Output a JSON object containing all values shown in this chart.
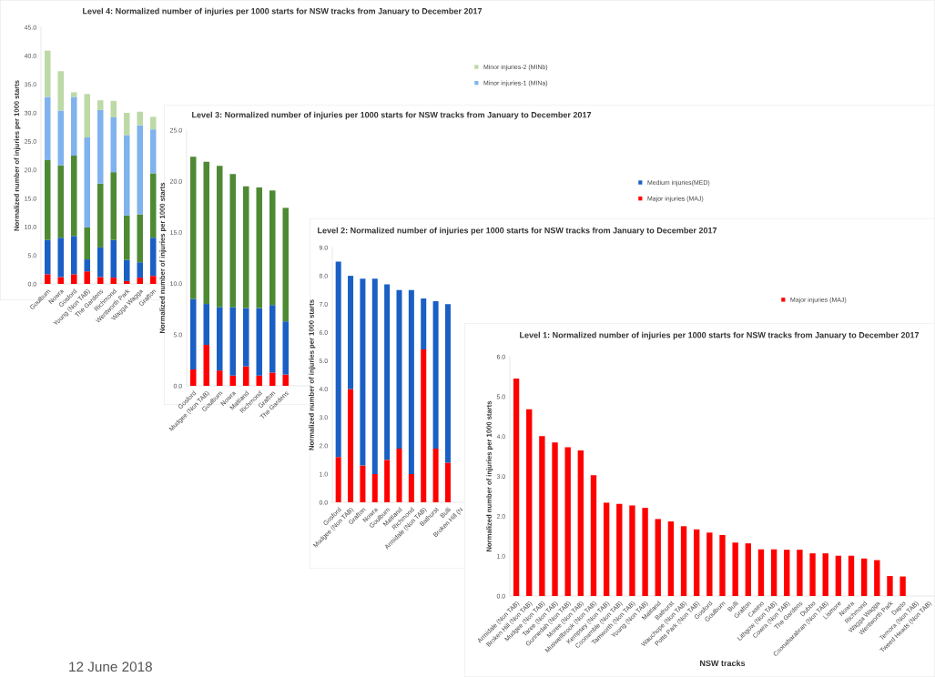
{
  "chart_data": [
    {
      "type": "bar",
      "title": "Level 4: Normalized number of injuries per 1000 starts for NSW tracks from January to December 2017",
      "ylabel": "Normalized number of injuries per 1000 starts",
      "stacked": true,
      "legend": "right",
      "categories": [
        "Goulburn",
        "Nowra",
        "Gosford",
        "Young (Non TAB)",
        "The Gardens",
        "Richmond",
        "Wentworth Park",
        "Wagga Wagga",
        "Grafton",
        null
      ],
      "series": [
        {
          "color": "#ff0000",
          "values": [
            1.7,
            1.2,
            1.7,
            2.2,
            1.2,
            1.1,
            0.5,
            1.1,
            1.4,
            null
          ]
        },
        {
          "color": "#1a5fc4",
          "values": [
            6.0,
            6.9,
            6.7,
            2.1,
            5.2,
            6.6,
            3.7,
            2.7,
            6.7,
            null
          ]
        },
        {
          "color": "#4e8a34",
          "values": [
            14.0,
            12.7,
            14.1,
            5.6,
            11.2,
            11.9,
            7.8,
            8.4,
            11.3,
            null
          ]
        },
        {
          "name": "Minor injuries-1 (MINa)",
          "color": "#80b3ee",
          "values": [
            11.1,
            9.6,
            10.3,
            15.8,
            12.9,
            9.6,
            14.1,
            15.6,
            7.7,
            null
          ]
        },
        {
          "name": "Minor injuries-2 (MINb)",
          "color": "#bcd9a6",
          "values": [
            8.1,
            6.9,
            0.8,
            7.6,
            1.7,
            2.9,
            3.9,
            2.4,
            2.2,
            null
          ]
        }
      ],
      "ylim": [
        0,
        45
      ],
      "yticks": [
        {
          "value": 0,
          "label": "0.0"
        },
        {
          "value": 5,
          "label": "5.0"
        },
        {
          "value": 10,
          "label": "10.0"
        },
        {
          "value": 15,
          "label": "15.0"
        },
        {
          "value": 20,
          "label": "20.0"
        },
        {
          "value": 25,
          "label": "25.0"
        },
        {
          "value": 30,
          "label": "30.0"
        },
        {
          "value": 35,
          "label": "35.0"
        },
        {
          "value": 40,
          "label": "40.0"
        },
        {
          "value": 45,
          "label": "45.0"
        }
      ],
      "annotations": [
        "12 June 2018"
      ]
    },
    {
      "type": "bar",
      "title": "Level 3: Normalized number of injuries per 1000 starts for NSW tracks from January to December 2017",
      "ylabel": "Normalized number of injuries per 1000 starts",
      "stacked": true,
      "legend": "right",
      "categories": [
        "Gosford",
        "Mudgee (Non TAB)",
        "Goulburn",
        "Nowra",
        "Maitland",
        "Richmond",
        "Grafton",
        "The Gardens",
        null,
        null
      ],
      "series": [
        {
          "name": "Major injuries (MAJ)",
          "color": "#ff0000",
          "values": [
            1.6,
            4.0,
            1.5,
            1.0,
            1.9,
            1.0,
            1.3,
            1.1,
            null,
            null
          ]
        },
        {
          "name": "Medium injuries(MED)",
          "color": "#1a5fc4",
          "values": [
            6.9,
            4.0,
            6.2,
            6.7,
            5.7,
            6.6,
            6.6,
            5.2,
            null,
            null
          ]
        },
        {
          "color": "#4e8a34",
          "values": [
            13.9,
            13.9,
            13.8,
            13.0,
            11.9,
            11.8,
            11.2,
            11.1,
            null,
            null
          ]
        }
      ],
      "ylim": [
        0,
        25
      ],
      "yticks": [
        {
          "value": 0,
          "label": "0.0"
        },
        {
          "value": 5,
          "label": "5.0"
        },
        {
          "value": 10,
          "label": "10.0"
        },
        {
          "value": 15,
          "label": "15.0"
        },
        {
          "value": 20,
          "label": "20.0"
        },
        {
          "value": 25,
          "label": "25.0"
        }
      ]
    },
    {
      "type": "bar",
      "title": "Level 2: Normalized number of injuries per 1000 starts for NSW tracks from January to December 2017",
      "ylabel": "Normalized number of injuries per 1000 starts",
      "stacked": true,
      "legend": "right",
      "categories": [
        "Gosford",
        "Mudgee (Non TAB)",
        "Grafton",
        "Nowra",
        "Goulburn",
        "Maitland",
        "Richmond",
        "Armidale (Non TAB)",
        "Bathurst",
        "Bulli",
        "Broken Hill (N"
      ],
      "series": [
        {
          "name": "Major injuries (MAJ)",
          "color": "#ff0000",
          "values": [
            1.6,
            4.0,
            1.3,
            1.0,
            1.5,
            1.9,
            1.0,
            5.4,
            1.9,
            1.4,
            null
          ]
        },
        {
          "color": "#1a5fc4",
          "values": [
            6.9,
            4.0,
            6.6,
            6.9,
            6.2,
            5.6,
            6.5,
            1.8,
            5.2,
            5.6,
            null
          ]
        }
      ],
      "ylim": [
        0,
        9
      ],
      "yticks": [
        {
          "value": 0,
          "label": "0.0"
        },
        {
          "value": 1,
          "label": "1.0"
        },
        {
          "value": 2,
          "label": "2.0"
        },
        {
          "value": 3,
          "label": "3.0"
        },
        {
          "value": 4,
          "label": "4.0"
        },
        {
          "value": 5,
          "label": "5.0"
        },
        {
          "value": 6,
          "label": "6.0"
        },
        {
          "value": 7,
          "label": "7.0"
        },
        {
          "value": 8,
          "label": "8.0"
        },
        {
          "value": 9,
          "label": "9.0"
        }
      ]
    },
    {
      "type": "bar",
      "title": "Level 1: Normalized number of injuries per 1000 starts for NSW tracks from January to December 2017",
      "ylabel": "Normalized number of injuries per 1000 starts",
      "xlabel": "NSW tracks",
      "categories": [
        "Armidale (Non TAB)",
        "Broken Hill (Non TAB)",
        "Mudgee (Non TAB)",
        "Taree (Non TAB)",
        "Gunnedah (Non TAB)",
        "Moree (Non TAB)",
        "Muswellbrook (Non TAB)",
        "Kempsey (Non TAB)",
        "Coonamble (Non TAB)",
        "Tamworth (Non TAB)",
        "Young (Non TAB)",
        "Maitland",
        "Bathurst",
        "Wauchope (Non TAB)",
        "Potts Park (Non TAB)",
        "Gosford",
        "Goulburn",
        "Bulli",
        "Grafton",
        "Casino",
        "Lithgow (Non TAB)",
        "Cowra (Non TAB)",
        "The Gardens",
        "Dubbo",
        "Coonabarabran (Non TAB)",
        "Lismore",
        "Nowra",
        "Richmond",
        "Wagga Wagga",
        "Wentworth Park",
        "Dapto",
        "Temora (Non TAB)",
        "Tweed Heads (Non TAB)"
      ],
      "series": [
        {
          "color": "#ff0000",
          "values": [
            5.45,
            4.68,
            4.01,
            3.85,
            3.73,
            3.65,
            3.03,
            2.34,
            2.31,
            2.27,
            2.21,
            1.93,
            1.87,
            1.75,
            1.67,
            1.59,
            1.53,
            1.34,
            1.32,
            1.17,
            1.17,
            1.16,
            1.16,
            1.07,
            1.07,
            1.01,
            1.01,
            0.94,
            0.9,
            0.5,
            0.49,
            0,
            0
          ]
        }
      ],
      "ylim": [
        0,
        6
      ],
      "yticks": [
        {
          "value": 0,
          "label": "0.0"
        },
        {
          "value": 1,
          "label": "1.0"
        },
        {
          "value": 2,
          "label": "2.0"
        },
        {
          "value": 3,
          "label": "3.0"
        },
        {
          "value": 4,
          "label": "4.0"
        },
        {
          "value": 5,
          "label": "5.0"
        },
        {
          "value": 6,
          "label": "6.0"
        }
      ]
    }
  ]
}
